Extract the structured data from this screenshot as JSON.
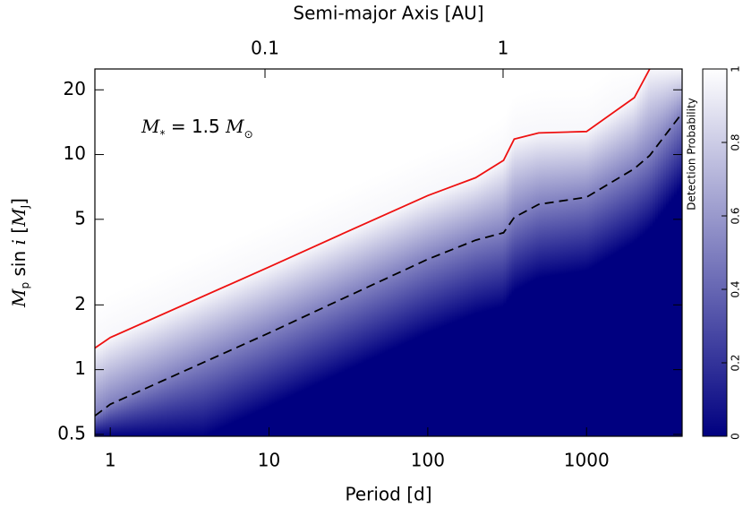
{
  "chart_data": {
    "type": "heatmap-lines",
    "x_label": "Period [d]",
    "x2_label": "Semi-major Axis [AU]",
    "y_label": [
      "M",
      "p",
      " sin ",
      "i",
      " [",
      "M",
      "J",
      "]"
    ],
    "annotation": {
      "symbol": "M",
      "subscript": "*",
      "relation": " = 1.5 ",
      "unit": "M",
      "unit_subscript": "⊙"
    },
    "x_scale": "log",
    "y_scale": "log",
    "xlim": [
      0.8,
      4000
    ],
    "xticks": [
      1,
      10,
      100,
      1000
    ],
    "x2lim": [
      0.0193,
      5.65
    ],
    "x2ticks": [
      0.1,
      1
    ],
    "ylim": [
      0.49,
      25
    ],
    "yticks": [
      0.5,
      1,
      2,
      5,
      10,
      20
    ],
    "x": [
      0.8,
      1,
      10,
      30,
      100,
      200,
      300,
      350,
      500,
      1000,
      2000,
      2500,
      4000
    ],
    "series": [
      {
        "color": "#000000",
        "dash": "10,6",
        "values": [
          0.61,
          0.69,
          1.48,
          2.16,
          3.26,
          4.0,
          4.33,
          5.1,
          5.87,
          6.34,
          8.6,
          9.9,
          15.6
        ]
      },
      {
        "color": "#ee1111",
        "dash": "none",
        "values": [
          1.26,
          1.41,
          3.0,
          4.33,
          6.45,
          7.8,
          9.4,
          11.8,
          12.6,
          12.8,
          18.4,
          25,
          null
        ]
      }
    ],
    "colorbar": {
      "label": "Detection Probability",
      "colormap": [
        "#000080",
        "#ffffff"
      ],
      "clim": [
        0,
        1
      ],
      "ticks": [
        0,
        0.2,
        0.4,
        0.6,
        0.8,
        1
      ]
    }
  }
}
